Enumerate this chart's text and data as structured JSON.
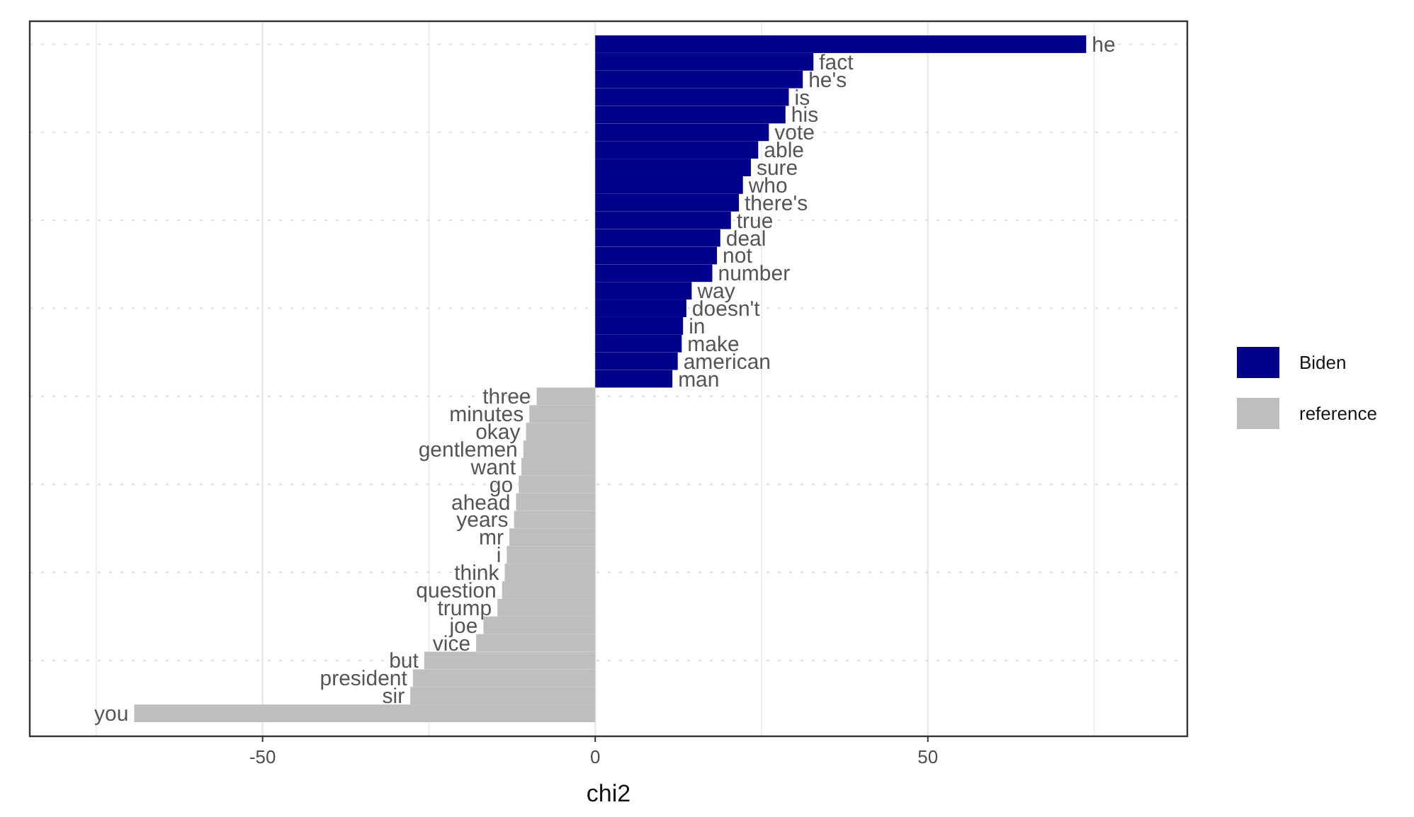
{
  "chart_data": {
    "type": "bar",
    "orientation": "horizontal",
    "xlabel": "chi2",
    "categories": [
      "he",
      "fact",
      "he's",
      "is",
      "his",
      "vote",
      "able",
      "sure",
      "who",
      "there's",
      "true",
      "deal",
      "not",
      "number",
      "way",
      "doesn't",
      "in",
      "make",
      "american",
      "man",
      "three",
      "minutes",
      "okay",
      "gentlemen",
      "want",
      "go",
      "ahead",
      "years",
      "mr",
      "i",
      "think",
      "question",
      "trump",
      "joe",
      "vice",
      "but",
      "president",
      "sir",
      "you"
    ],
    "series": [
      {
        "name": "Biden",
        "color": "#00008b",
        "values": [
          73.8,
          32.8,
          31.2,
          29.1,
          28.6,
          26.1,
          24.5,
          23.4,
          22.2,
          21.6,
          20.4,
          18.8,
          18.3,
          17.6,
          14.5,
          13.7,
          13.2,
          13,
          12.4,
          11.6,
          null,
          null,
          null,
          null,
          null,
          null,
          null,
          null,
          null,
          null,
          null,
          null,
          null,
          null,
          null,
          null,
          null,
          null,
          null
        ]
      },
      {
        "name": "reference",
        "color": "#bebebe",
        "values": [
          null,
          null,
          null,
          null,
          null,
          null,
          null,
          null,
          null,
          null,
          null,
          null,
          null,
          null,
          null,
          null,
          null,
          null,
          null,
          null,
          -8.8,
          -9.9,
          -10.4,
          -10.8,
          -11.1,
          -11.5,
          -11.9,
          -12.2,
          -12.9,
          -13.3,
          -13.6,
          -14,
          -14.7,
          -16.8,
          -17.9,
          -25.7,
          -27.4,
          -27.8,
          -69.3
        ]
      }
    ],
    "xlim": [
      -85,
      89
    ],
    "xticks": [
      {
        "value": -75,
        "label": null
      },
      -50,
      {
        "value": -25,
        "label": null
      },
      0,
      {
        "value": 25,
        "label": null
      },
      50,
      {
        "value": 75,
        "label": null
      }
    ],
    "grid": true,
    "legend": "right",
    "tick_labels": "x"
  }
}
